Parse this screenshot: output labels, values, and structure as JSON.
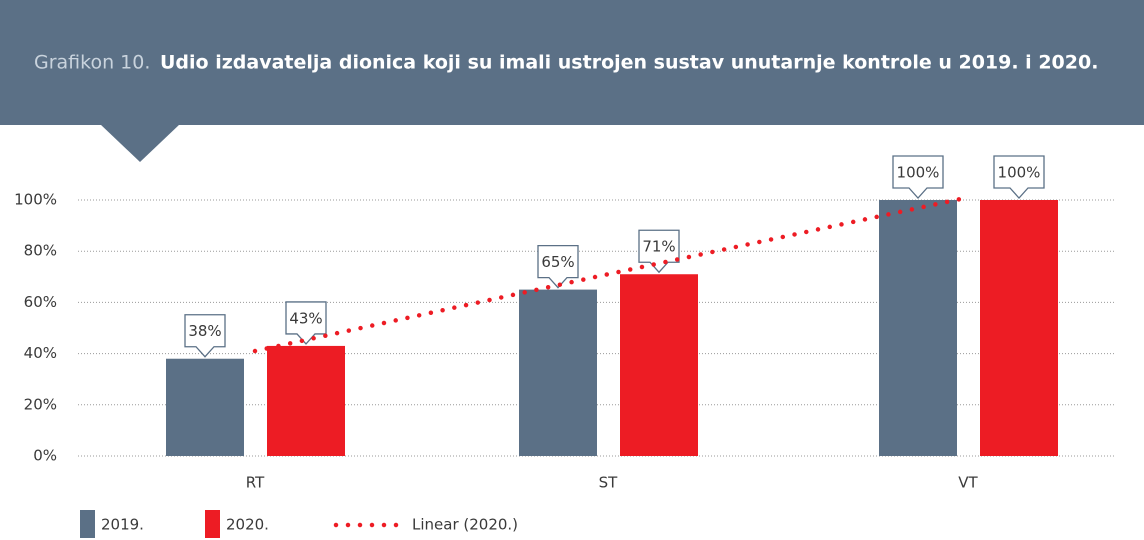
{
  "chart_data": {
    "type": "bar",
    "title_label": "Grafikon 10.",
    "title": "Udio izdavatelja dionica koji su imali ustrojen sustav unutarnje kontrole u 2019. i 2020.",
    "categories": [
      "RT",
      "ST",
      "VT"
    ],
    "series": [
      {
        "name": "2019.",
        "color": "#5b7086",
        "values": [
          38,
          65,
          100
        ],
        "value_labels": [
          "38%",
          "65%",
          "100%"
        ]
      },
      {
        "name": "2020.",
        "color": "#ed1c24",
        "values": [
          43,
          71,
          100
        ],
        "value_labels": [
          "43%",
          "71%",
          "100%"
        ]
      },
      {
        "name": "Linear (2020.)",
        "type": "line",
        "style": "dotted",
        "color": "#ed1c24",
        "values": [
          41,
          71,
          101
        ]
      }
    ],
    "ylim": [
      0,
      100
    ],
    "yticks": [
      {
        "value": 0,
        "label": "0%"
      },
      {
        "value": 20,
        "label": "20%"
      },
      {
        "value": 40,
        "label": "40%"
      },
      {
        "value": 60,
        "label": "60%"
      },
      {
        "value": 80,
        "label": "80%"
      },
      {
        "value": 100,
        "label": "100%"
      }
    ],
    "grid": true,
    "legend": "bottom-left"
  }
}
